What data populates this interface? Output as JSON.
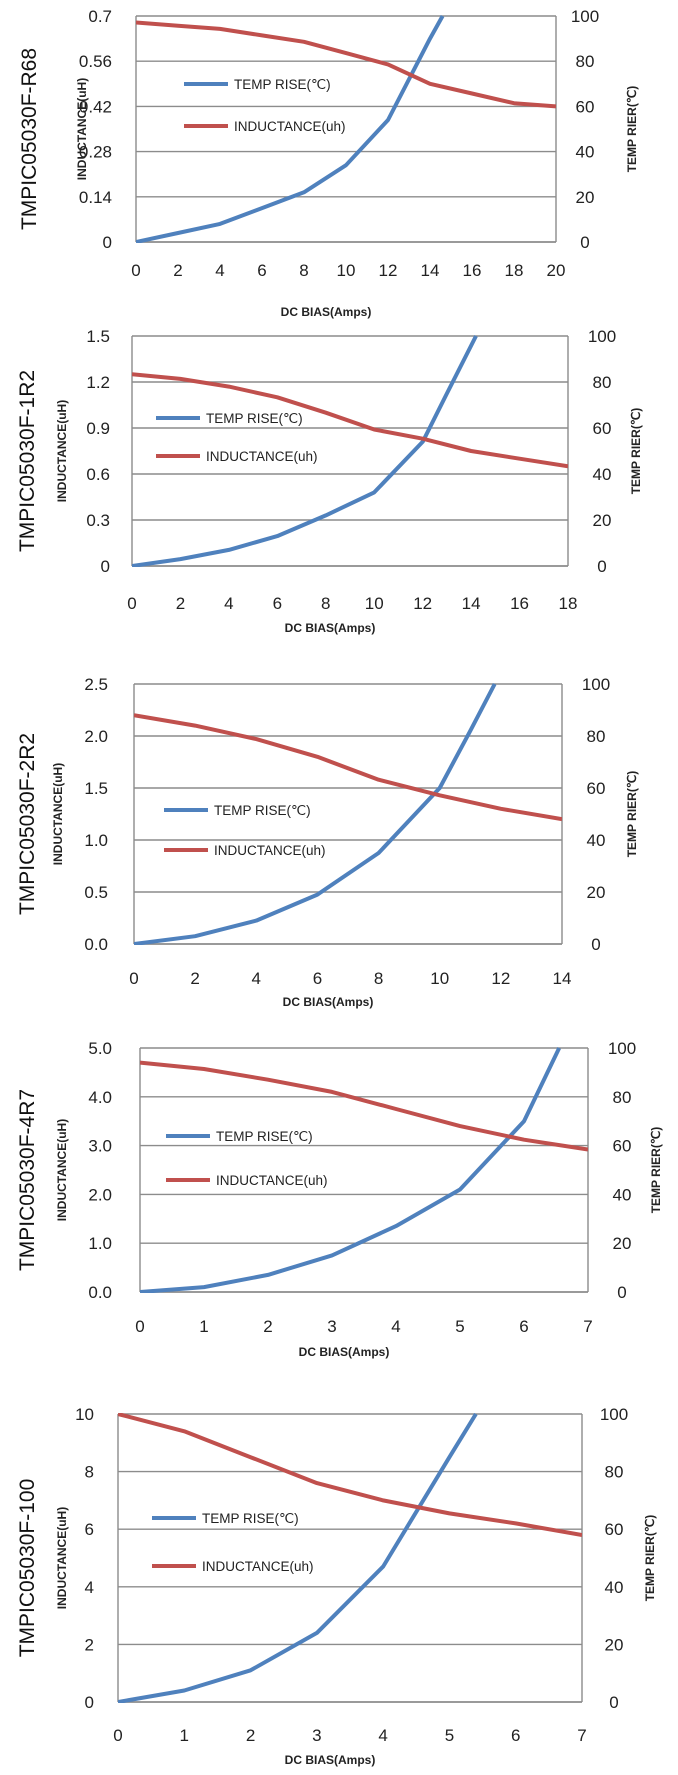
{
  "colors": {
    "temp_rise": "#4f81bd",
    "inductance": "#c0504d",
    "grid": "#8c8c8c"
  },
  "chart_data": [
    {
      "type": "line",
      "title": "TMPIC05030F-R68",
      "xlabel": "DC BIAS(Amps)",
      "ylabel": "INDUCTANCE(uH)",
      "y2label": "TEMP RIER(℃)",
      "x_ticks": [
        "0",
        "2",
        "4",
        "6",
        "8",
        "10",
        "12",
        "14",
        "16",
        "18",
        "20"
      ],
      "y_ticks": [
        "0",
        "0.14",
        "0.28",
        "0.42",
        "0.56",
        "0.7"
      ],
      "y2_ticks": [
        "0",
        "20",
        "40",
        "60",
        "80",
        "100"
      ],
      "xlim": [
        0,
        20
      ],
      "ylim": [
        0,
        0.7
      ],
      "y2lim": [
        0,
        100
      ],
      "grid": true,
      "legend_position": "left",
      "series": [
        {
          "name": "TEMP RISE(℃)",
          "axis": "right",
          "x": [
            0,
            2,
            4,
            6,
            8,
            10,
            12,
            14,
            14.6
          ],
          "y": [
            0,
            4,
            8,
            15,
            22,
            34,
            54,
            90,
            100
          ]
        },
        {
          "name": "INDUCTANCE(uh)",
          "axis": "left",
          "x": [
            0,
            2,
            4,
            6,
            8,
            10,
            12,
            14,
            16,
            18,
            20
          ],
          "y": [
            0.68,
            0.67,
            0.66,
            0.64,
            0.62,
            0.585,
            0.55,
            0.49,
            0.46,
            0.43,
            0.42
          ]
        }
      ]
    },
    {
      "type": "line",
      "title": "TMPIC05030F-1R2",
      "xlabel": "DC BIAS(Amps)",
      "ylabel": "INDUCTANCE(uH)",
      "y2label": "TEMP RIER(℃)",
      "x_ticks": [
        "0",
        "2",
        "4",
        "6",
        "8",
        "10",
        "12",
        "14",
        "16",
        "18"
      ],
      "y_ticks": [
        "0",
        "0.3",
        "0.6",
        "0.9",
        "1.2",
        "1.5"
      ],
      "y2_ticks": [
        "0",
        "20",
        "40",
        "60",
        "80",
        "100"
      ],
      "xlim": [
        0,
        18
      ],
      "ylim": [
        0,
        1.5
      ],
      "y2lim": [
        0,
        100
      ],
      "grid": true,
      "legend_position": "left",
      "series": [
        {
          "name": "TEMP RISE(℃)",
          "axis": "right",
          "x": [
            0,
            2,
            4,
            6,
            8,
            10,
            12,
            13,
            14.2
          ],
          "y": [
            0,
            3,
            7,
            13,
            22,
            32,
            54,
            75,
            100
          ]
        },
        {
          "name": "INDUCTANCE(uh)",
          "axis": "left",
          "x": [
            0,
            2,
            4,
            6,
            8,
            10,
            12,
            14,
            16,
            18
          ],
          "y": [
            1.25,
            1.22,
            1.17,
            1.1,
            1.0,
            0.89,
            0.83,
            0.75,
            0.7,
            0.65
          ]
        }
      ]
    },
    {
      "type": "line",
      "title": "TMPIC05030F-2R2",
      "xlabel": "DC BIAS(Amps)",
      "ylabel": "INDUCTANCE(uH)",
      "y2label": "TEMP RIER(℃)",
      "x_ticks": [
        "0",
        "2",
        "4",
        "6",
        "8",
        "10",
        "12",
        "14"
      ],
      "y_ticks": [
        "0.0",
        "0.5",
        "1.0",
        "1.5",
        "2.0",
        "2.5"
      ],
      "y2_ticks": [
        "0",
        "20",
        "40",
        "60",
        "80",
        "100"
      ],
      "xlim": [
        0,
        14
      ],
      "ylim": [
        0,
        2.5
      ],
      "y2lim": [
        0,
        100
      ],
      "grid": true,
      "legend_position": "left",
      "series": [
        {
          "name": "TEMP RISE(℃)",
          "axis": "right",
          "x": [
            0,
            2,
            4,
            6,
            8,
            10,
            11,
            11.8
          ],
          "y": [
            0,
            3,
            9,
            19,
            35,
            60,
            82,
            100
          ]
        },
        {
          "name": "INDUCTANCE(uh)",
          "axis": "left",
          "x": [
            0,
            2,
            4,
            6,
            8,
            10,
            12,
            14
          ],
          "y": [
            2.2,
            2.1,
            1.97,
            1.8,
            1.58,
            1.43,
            1.3,
            1.2
          ]
        }
      ]
    },
    {
      "type": "line",
      "title": "TMPIC05030F-4R7",
      "xlabel": "DC BIAS(Amps)",
      "ylabel": "INDUCTANCE(uH)",
      "y2label": "TEMP RIER(℃)",
      "x_ticks": [
        "0",
        "1",
        "2",
        "3",
        "4",
        "5",
        "6",
        "7"
      ],
      "y_ticks": [
        "0.0",
        "1.0",
        "2.0",
        "3.0",
        "4.0",
        "5.0"
      ],
      "y2_ticks": [
        "0",
        "20",
        "40",
        "60",
        "80",
        "100"
      ],
      "xlim": [
        0,
        7
      ],
      "ylim": [
        0,
        5
      ],
      "y2lim": [
        0,
        100
      ],
      "grid": true,
      "legend_position": "left",
      "series": [
        {
          "name": "TEMP RISE(℃)",
          "axis": "right",
          "x": [
            0,
            1,
            2,
            3,
            4,
            5,
            6,
            6.55
          ],
          "y": [
            0,
            2,
            7,
            15,
            27,
            42,
            70,
            100
          ]
        },
        {
          "name": "INDUCTANCE(uh)",
          "axis": "left",
          "x": [
            0,
            1,
            2,
            3,
            4,
            5,
            6,
            7
          ],
          "y": [
            4.7,
            4.57,
            4.35,
            4.1,
            3.75,
            3.4,
            3.12,
            2.92
          ]
        }
      ]
    },
    {
      "type": "line",
      "title": "TMPIC05030F-100",
      "xlabel": "DC BIAS(Amps)",
      "ylabel": "INDUCTANCE(uH)",
      "y2label": "TEMP RIER(℃)",
      "x_ticks": [
        "0",
        "1",
        "2",
        "3",
        "4",
        "5",
        "6",
        "7"
      ],
      "y_ticks": [
        "0",
        "2",
        "4",
        "6",
        "8",
        "10"
      ],
      "y2_ticks": [
        "0",
        "20",
        "40",
        "60",
        "80",
        "100"
      ],
      "xlim": [
        0,
        7
      ],
      "ylim": [
        0,
        10
      ],
      "y2lim": [
        0,
        100
      ],
      "grid": true,
      "legend_position": "left",
      "series": [
        {
          "name": "TEMP RISE(℃)",
          "axis": "right",
          "x": [
            0,
            1,
            2,
            3,
            4,
            5,
            5.4
          ],
          "y": [
            0,
            4,
            11,
            24,
            47,
            85,
            100
          ]
        },
        {
          "name": "INDUCTANCE(uh)",
          "axis": "left",
          "x": [
            0,
            1,
            2,
            3,
            4,
            5,
            6,
            7
          ],
          "y": [
            10,
            9.4,
            8.5,
            7.6,
            7.0,
            6.55,
            6.2,
            5.8
          ]
        }
      ]
    }
  ]
}
